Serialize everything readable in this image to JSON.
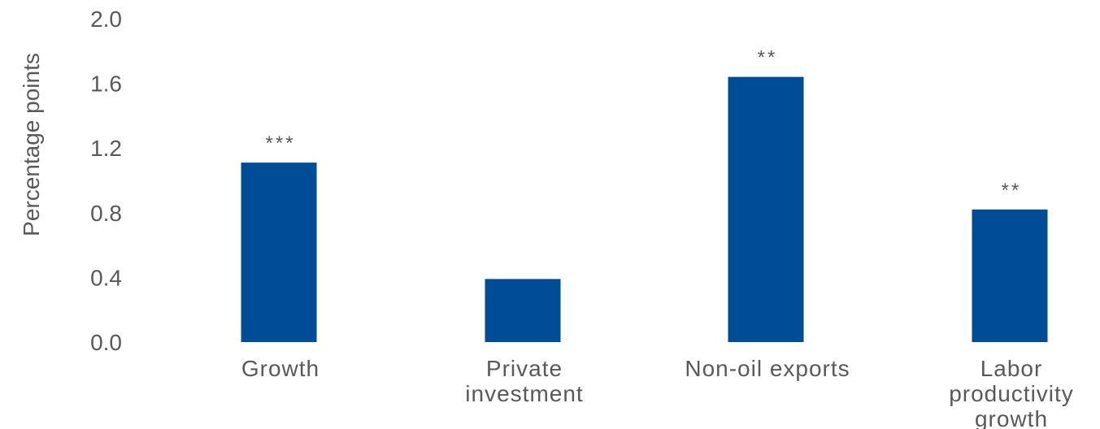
{
  "chart_data": {
    "type": "bar",
    "title": "",
    "xlabel": "",
    "ylabel": "Percentage points",
    "ylim": [
      0,
      2.0
    ],
    "yticks": [
      "0.0",
      "0.4",
      "0.8",
      "1.2",
      "1.6",
      "2.0"
    ],
    "grid": false,
    "legend": "none",
    "categories": [
      [
        "Growth"
      ],
      [
        "Private",
        "investment"
      ],
      [
        "Non-oil exports"
      ],
      [
        "Labor",
        "productivity",
        "growth"
      ]
    ],
    "values": [
      1.11,
      0.39,
      1.64,
      0.82
    ],
    "significance": [
      "***",
      "",
      "**",
      "**"
    ],
    "bar_color": "#004C97"
  }
}
